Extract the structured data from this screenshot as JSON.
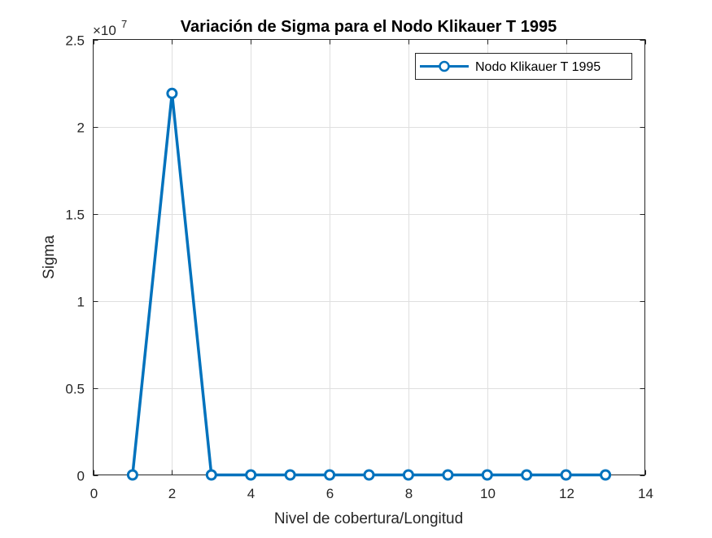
{
  "chart_data": {
    "type": "line",
    "title": "Variación de Sigma para el Nodo Klikauer T 1995",
    "xlabel": "Nivel de cobertura/Longitud",
    "ylabel": "Sigma",
    "exponent_label": {
      "base": "×10",
      "power": "7"
    },
    "xlim": [
      0,
      14
    ],
    "ylim": [
      0,
      2.5
    ],
    "xticks": [
      0,
      2,
      4,
      6,
      8,
      10,
      12,
      14
    ],
    "yticks": [
      0,
      0.5,
      1,
      1.5,
      2,
      2.5
    ],
    "ytick_labels": [
      "0",
      "0.5",
      "1",
      "1.5",
      "2",
      "2.5"
    ],
    "grid": true,
    "legend_position": "top-right",
    "series": [
      {
        "name": "Nodo Klikauer T 1995",
        "color": "#0072BD",
        "marker": "circle",
        "x": [
          1,
          2,
          3,
          4,
          5,
          6,
          7,
          8,
          9,
          10,
          11,
          12,
          13
        ],
        "y": [
          0,
          2.19,
          0,
          0,
          0,
          0,
          0,
          0,
          0,
          0,
          0,
          0,
          0
        ]
      }
    ]
  }
}
